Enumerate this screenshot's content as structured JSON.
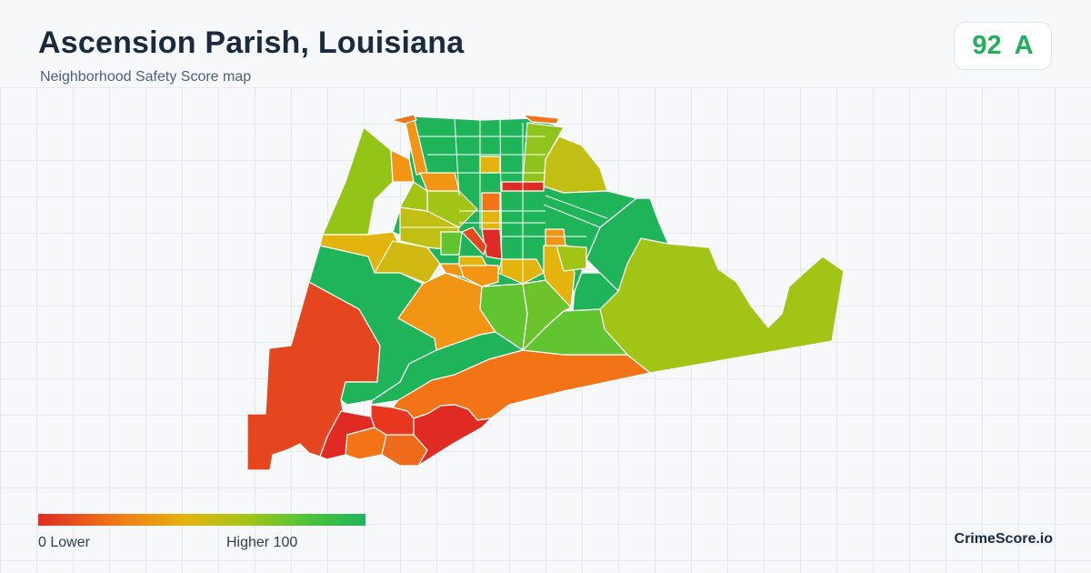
{
  "header": {
    "title": "Ascension Parish, Louisiana",
    "subtitle": "Neighborhood Safety Score map"
  },
  "score_badge": {
    "score": "92",
    "grade": "A",
    "color": "#22b05a"
  },
  "legend": {
    "low_label": "0  Lower",
    "high_label": "Higher  100",
    "colors": [
      "#e02b24",
      "#f07c16",
      "#e4b40e",
      "#9fc51a",
      "#4fc33a",
      "#1fb45a"
    ]
  },
  "brand": "CrimeScore.io",
  "map": {
    "region": "Ascension Parish, Louisiana",
    "colors": {
      "green": "#1fb45a",
      "light_green": "#63c431",
      "yellow_green": "#a2c416",
      "yellow": "#e4b40e",
      "orange": "#f39514",
      "dark_orange": "#f27417",
      "red_orange": "#e6461f",
      "red": "#e02b24",
      "boundary": "#ffffff"
    }
  }
}
